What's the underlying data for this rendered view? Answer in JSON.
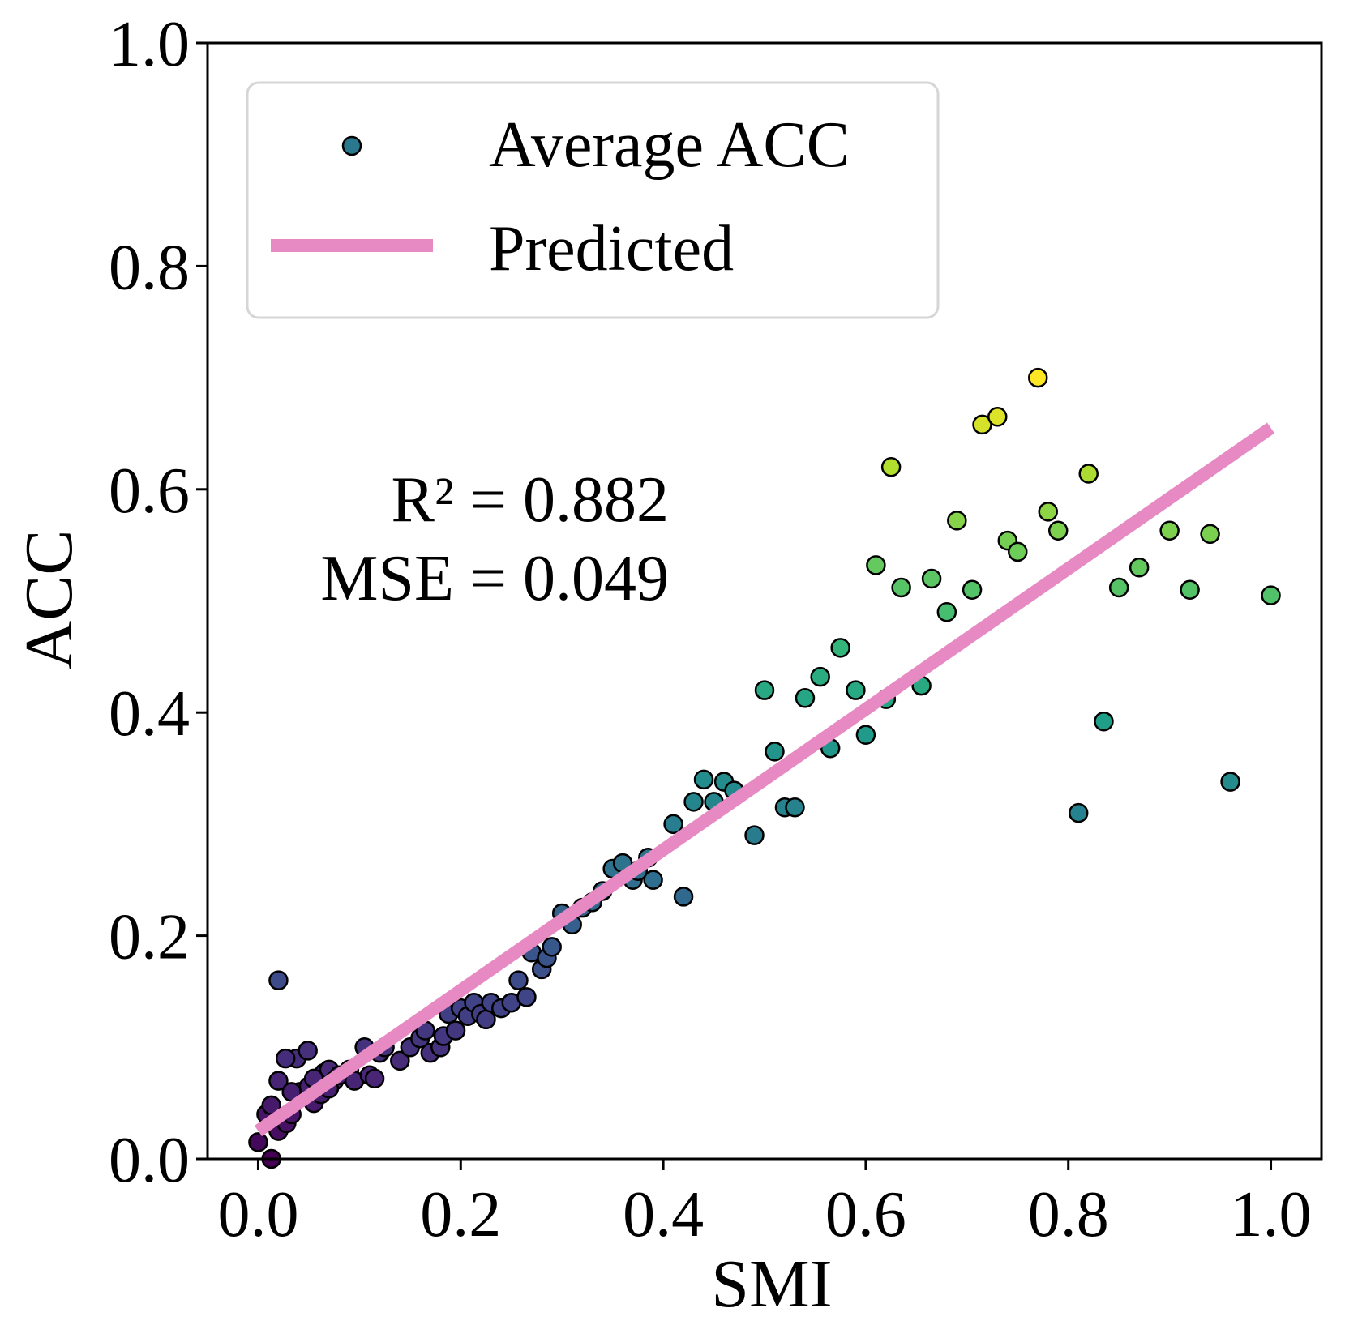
{
  "chart_data": {
    "type": "scatter",
    "xlabel": "SMI",
    "ylabel": "ACC",
    "xlim": [
      -0.05,
      1.05
    ],
    "ylim": [
      0.0,
      1.0
    ],
    "xticks": [
      "0.0",
      "0.2",
      "0.4",
      "0.6",
      "0.8",
      "1.0"
    ],
    "yticks": [
      "0.0",
      "0.2",
      "0.4",
      "0.6",
      "0.8",
      "1.0"
    ],
    "grid": false,
    "legend": {
      "position": "top-left",
      "entries": [
        {
          "label": "Average ACC",
          "marker": "circle",
          "color": "#2a788e"
        },
        {
          "label": "Predicted",
          "marker": "line",
          "color": "#e78ac3"
        }
      ]
    },
    "annotations": {
      "r2": "R² = 0.882",
      "mse": "MSE = 0.049"
    },
    "colors": {
      "regression_line": "#e78ac3",
      "marker_edge": "#000000",
      "colormap": "viridis"
    },
    "series": [
      {
        "name": "Average ACC",
        "x": [
          0.0,
          0.013,
          0.02,
          0.028,
          0.008,
          0.013,
          0.033,
          0.041,
          0.038,
          0.049,
          0.055,
          0.06,
          0.065,
          0.07,
          0.075,
          0.02,
          0.027,
          0.033,
          0.05,
          0.055,
          0.062,
          0.07,
          0.08,
          0.09,
          0.095,
          0.105,
          0.11,
          0.115,
          0.12,
          0.125,
          0.14,
          0.15,
          0.16,
          0.165,
          0.17,
          0.18,
          0.183,
          0.188,
          0.195,
          0.2,
          0.207,
          0.213,
          0.22,
          0.225,
          0.23,
          0.24,
          0.25,
          0.257,
          0.265,
          0.27,
          0.28,
          0.285,
          0.29,
          0.3,
          0.31,
          0.32,
          0.33,
          0.34,
          0.35,
          0.36,
          0.37,
          0.375,
          0.385,
          0.39,
          0.41,
          0.42,
          0.43,
          0.44,
          0.45,
          0.46,
          0.47,
          0.49,
          0.5,
          0.51,
          0.52,
          0.53,
          0.54,
          0.555,
          0.565,
          0.575,
          0.59,
          0.6,
          0.62,
          0.61,
          0.625,
          0.635,
          0.655,
          0.665,
          0.68,
          0.69,
          0.705,
          0.715,
          0.73,
          0.74,
          0.75,
          0.77,
          0.78,
          0.79,
          0.82,
          0.81,
          0.835,
          0.85,
          0.87,
          0.9,
          0.92,
          0.94,
          0.96,
          1.0,
          0.02
        ],
        "y": [
          0.015,
          0.0,
          0.025,
          0.032,
          0.04,
          0.048,
          0.04,
          0.06,
          0.09,
          0.097,
          0.05,
          0.067,
          0.077,
          0.08,
          0.07,
          0.07,
          0.09,
          0.06,
          0.065,
          0.072,
          0.058,
          0.063,
          0.075,
          0.08,
          0.07,
          0.1,
          0.075,
          0.072,
          0.095,
          0.1,
          0.088,
          0.1,
          0.108,
          0.115,
          0.095,
          0.1,
          0.11,
          0.13,
          0.115,
          0.135,
          0.128,
          0.14,
          0.13,
          0.125,
          0.14,
          0.135,
          0.14,
          0.16,
          0.145,
          0.185,
          0.17,
          0.18,
          0.19,
          0.22,
          0.21,
          0.225,
          0.23,
          0.24,
          0.26,
          0.265,
          0.25,
          0.258,
          0.27,
          0.25,
          0.3,
          0.235,
          0.32,
          0.34,
          0.32,
          0.338,
          0.33,
          0.29,
          0.42,
          0.365,
          0.315,
          0.315,
          0.413,
          0.432,
          0.368,
          0.458,
          0.42,
          0.38,
          0.412,
          0.532,
          0.62,
          0.512,
          0.424,
          0.52,
          0.49,
          0.572,
          0.51,
          0.658,
          0.665,
          0.554,
          0.544,
          0.7,
          0.58,
          0.563,
          0.614,
          0.31,
          0.392,
          0.512,
          0.53,
          0.563,
          0.51,
          0.56,
          0.338,
          0.505,
          0.16
        ]
      },
      {
        "name": "Predicted",
        "x": [
          0.0,
          1.0
        ],
        "y": [
          0.025,
          0.655
        ]
      }
    ]
  }
}
